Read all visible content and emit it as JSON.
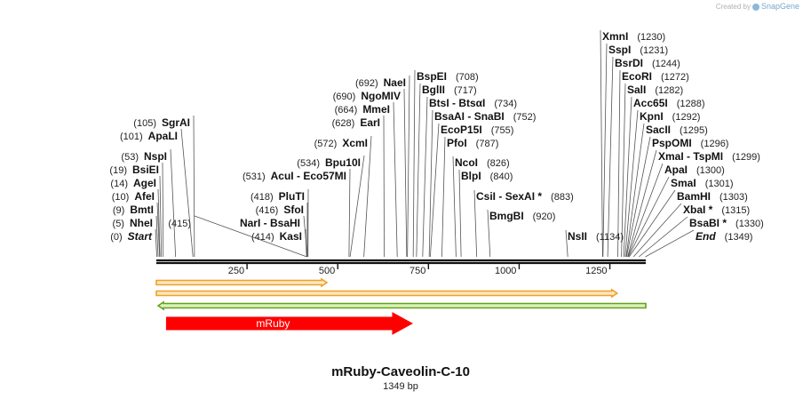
{
  "credit": {
    "prefix": "Created by",
    "brand": "SnapGene"
  },
  "colors": {
    "backbone": "#111111",
    "label_line": "#555555",
    "feature_orange": "#f0a028",
    "feature_orange_fill": "#fbe7c0",
    "feature_green": "#68a020",
    "feature_green_fill": "#d9f3b8",
    "mruby_fill": "#ff0000",
    "mruby_text": "#ffffff"
  },
  "map": {
    "title": "mRuby-Caveolin-C-10",
    "length_label": "1349 bp",
    "length": 1349,
    "ticks": [
      {
        "label": "250",
        "value": 250
      },
      {
        "label": "500",
        "value": 500
      },
      {
        "label": "750",
        "value": 750
      },
      {
        "label": "1000",
        "value": 1000
      },
      {
        "label": "1250",
        "value": 1250
      }
    ],
    "features": [
      {
        "name": "orf-1",
        "start": 0,
        "end": 470,
        "direction": "forward",
        "style": "orange",
        "label": ""
      },
      {
        "name": "orf-2",
        "start": 0,
        "end": 1270,
        "direction": "forward",
        "style": "orange",
        "label": ""
      },
      {
        "name": "orf-3",
        "start": 5,
        "end": 1349,
        "direction": "reverse",
        "style": "green",
        "label": ""
      },
      {
        "name": "mruby",
        "start": 28,
        "end": 705,
        "direction": "forward",
        "style": "red",
        "label": "mRuby"
      }
    ]
  },
  "left_labels": [
    {
      "segments": [
        {
          "text": "(105)",
          "kind": "pos"
        },
        {
          "text": "SgrAI",
          "kind": "enz"
        }
      ],
      "site": 105
    },
    {
      "segments": [
        {
          "text": "(101)",
          "kind": "pos"
        },
        {
          "text": "ApaLI",
          "kind": "enz"
        }
      ],
      "site": 101
    },
    {
      "segments": [
        {
          "text": "(53)",
          "kind": "pos"
        },
        {
          "text": "NspI",
          "kind": "enz"
        }
      ],
      "site": 53
    },
    {
      "segments": [
        {
          "text": "(19)",
          "kind": "pos"
        },
        {
          "text": "BsiEI",
          "kind": "enz"
        }
      ],
      "site": 19
    },
    {
      "segments": [
        {
          "text": "(14)",
          "kind": "pos"
        },
        {
          "text": "AgeI",
          "kind": "enz"
        }
      ],
      "site": 14
    },
    {
      "segments": [
        {
          "text": "(10)",
          "kind": "pos"
        },
        {
          "text": "AfeI",
          "kind": "enz"
        }
      ],
      "site": 10
    },
    {
      "segments": [
        {
          "text": "(9)",
          "kind": "pos"
        },
        {
          "text": "BmtI",
          "kind": "enz"
        }
      ],
      "site": 9
    },
    {
      "segments": [
        {
          "text": "(5)",
          "kind": "pos"
        },
        {
          "text": "NheI",
          "kind": "enz"
        }
      ],
      "site": 5
    },
    {
      "segments": [
        {
          "text": "(0)",
          "kind": "pos"
        },
        {
          "text": "Start",
          "kind": "enz-italic"
        }
      ],
      "site": 0
    },
    {
      "segments": [
        {
          "text": "(415)",
          "kind": "pos"
        }
      ],
      "site": 415
    },
    {
      "segments": [
        {
          "text": "(418)",
          "kind": "pos"
        },
        {
          "text": "PluTI",
          "kind": "enz"
        }
      ],
      "site": 418
    },
    {
      "segments": [
        {
          "text": "(416)",
          "kind": "pos"
        },
        {
          "text": "SfoI",
          "kind": "enz"
        }
      ],
      "site": 416
    },
    {
      "segments": [
        {
          "text": "NarI",
          "kind": "enz"
        },
        {
          "text": " - ",
          "kind": "sep"
        },
        {
          "text": "BsaHI",
          "kind": "enz"
        }
      ],
      "site": 416
    },
    {
      "segments": [
        {
          "text": "(414)",
          "kind": "pos"
        },
        {
          "text": "KasI",
          "kind": "enz"
        }
      ],
      "site": 414
    },
    {
      "segments": [
        {
          "text": "(534)",
          "kind": "pos"
        },
        {
          "text": "Bpu10I",
          "kind": "enz"
        }
      ],
      "site": 534
    },
    {
      "segments": [
        {
          "text": "(531)",
          "kind": "pos"
        },
        {
          "text": "AcuI",
          "kind": "enz"
        },
        {
          "text": " - ",
          "kind": "sep"
        },
        {
          "text": "Eco57MI",
          "kind": "enz"
        }
      ],
      "site": 531
    },
    {
      "segments": [
        {
          "text": "(572)",
          "kind": "pos"
        },
        {
          "text": "XcmI",
          "kind": "enz"
        }
      ],
      "site": 572
    },
    {
      "segments": [
        {
          "text": "(692)",
          "kind": "pos"
        },
        {
          "text": "NaeI",
          "kind": "enz"
        }
      ],
      "site": 692
    },
    {
      "segments": [
        {
          "text": "(690)",
          "kind": "pos"
        },
        {
          "text": "NgoMIV",
          "kind": "enz"
        }
      ],
      "site": 690
    },
    {
      "segments": [
        {
          "text": "(664)",
          "kind": "pos"
        },
        {
          "text": "MmeI",
          "kind": "enz"
        }
      ],
      "site": 664
    },
    {
      "segments": [
        {
          "text": "(628)",
          "kind": "pos"
        },
        {
          "text": "EarI",
          "kind": "enz"
        }
      ],
      "site": 628
    }
  ],
  "right_labels": [
    {
      "segments": [
        {
          "text": "BspEI",
          "kind": "enz"
        },
        {
          "text": "(708)",
          "kind": "pos"
        }
      ],
      "site": 708
    },
    {
      "segments": [
        {
          "text": "BglII",
          "kind": "enz"
        },
        {
          "text": "(717)",
          "kind": "pos"
        }
      ],
      "site": 717
    },
    {
      "segments": [
        {
          "text": "BtsI",
          "kind": "enz"
        },
        {
          "text": " - ",
          "kind": "sep"
        },
        {
          "text": "BtsαI",
          "kind": "enz"
        },
        {
          "text": "(734)",
          "kind": "pos"
        }
      ],
      "site": 734
    },
    {
      "segments": [
        {
          "text": "BsaAI",
          "kind": "enz"
        },
        {
          "text": " - ",
          "kind": "sep"
        },
        {
          "text": "SnaBI",
          "kind": "enz"
        },
        {
          "text": "(752)",
          "kind": "pos"
        }
      ],
      "site": 752
    },
    {
      "segments": [
        {
          "text": "EcoP15I",
          "kind": "enz"
        },
        {
          "text": "(755)",
          "kind": "pos"
        }
      ],
      "site": 755
    },
    {
      "segments": [
        {
          "text": "PfoI",
          "kind": "enz"
        },
        {
          "text": "(787)",
          "kind": "pos"
        }
      ],
      "site": 787
    },
    {
      "segments": [
        {
          "text": "NcoI",
          "kind": "enz"
        },
        {
          "text": "(826)",
          "kind": "pos"
        }
      ],
      "site": 826
    },
    {
      "segments": [
        {
          "text": "BlpI",
          "kind": "enz"
        },
        {
          "text": "(840)",
          "kind": "pos"
        }
      ],
      "site": 840
    },
    {
      "segments": [
        {
          "text": "CsiI",
          "kind": "enz"
        },
        {
          "text": " - ",
          "kind": "sep"
        },
        {
          "text": "SexAI *",
          "kind": "enz"
        },
        {
          "text": "(883)",
          "kind": "pos"
        }
      ],
      "site": 883
    },
    {
      "segments": [
        {
          "text": "BmgBI",
          "kind": "enz"
        },
        {
          "text": "(920)",
          "kind": "pos"
        }
      ],
      "site": 920
    },
    {
      "segments": [
        {
          "text": "NsII",
          "kind": "enz"
        },
        {
          "text": "(1134)",
          "kind": "pos"
        }
      ],
      "site": 1134
    },
    {
      "segments": [
        {
          "text": "XmnI",
          "kind": "enz"
        },
        {
          "text": "(1230)",
          "kind": "pos"
        }
      ],
      "site": 1230
    },
    {
      "segments": [
        {
          "text": "SspI",
          "kind": "enz"
        },
        {
          "text": "(1231)",
          "kind": "pos"
        }
      ],
      "site": 1231
    },
    {
      "segments": [
        {
          "text": "BsrDI",
          "kind": "enz"
        },
        {
          "text": "(1244)",
          "kind": "pos"
        }
      ],
      "site": 1244
    },
    {
      "segments": [
        {
          "text": "EcoRI",
          "kind": "enz"
        },
        {
          "text": "(1272)",
          "kind": "pos"
        }
      ],
      "site": 1272
    },
    {
      "segments": [
        {
          "text": "SalI",
          "kind": "enz"
        },
        {
          "text": "(1282)",
          "kind": "pos"
        }
      ],
      "site": 1282
    },
    {
      "segments": [
        {
          "text": "Acc65I",
          "kind": "enz"
        },
        {
          "text": "(1288)",
          "kind": "pos"
        }
      ],
      "site": 1288
    },
    {
      "segments": [
        {
          "text": "KpnI",
          "kind": "enz"
        },
        {
          "text": "(1292)",
          "kind": "pos"
        }
      ],
      "site": 1292
    },
    {
      "segments": [
        {
          "text": "SacII",
          "kind": "enz"
        },
        {
          "text": "(1295)",
          "kind": "pos"
        }
      ],
      "site": 1295
    },
    {
      "segments": [
        {
          "text": "PspOMI",
          "kind": "enz"
        },
        {
          "text": "(1296)",
          "kind": "pos"
        }
      ],
      "site": 1296
    },
    {
      "segments": [
        {
          "text": "XmaI",
          "kind": "enz"
        },
        {
          "text": " - ",
          "kind": "sep"
        },
        {
          "text": "TspMI",
          "kind": "enz"
        },
        {
          "text": "(1299)",
          "kind": "pos"
        }
      ],
      "site": 1299
    },
    {
      "segments": [
        {
          "text": "ApaI",
          "kind": "enz"
        },
        {
          "text": "(1300)",
          "kind": "pos"
        }
      ],
      "site": 1300
    },
    {
      "segments": [
        {
          "text": "SmaI",
          "kind": "enz"
        },
        {
          "text": "(1301)",
          "kind": "pos"
        }
      ],
      "site": 1301
    },
    {
      "segments": [
        {
          "text": "BamHI",
          "kind": "enz"
        },
        {
          "text": "(1303)",
          "kind": "pos"
        }
      ],
      "site": 1303
    },
    {
      "segments": [
        {
          "text": "XbaI *",
          "kind": "enz"
        },
        {
          "text": "(1315)",
          "kind": "pos"
        }
      ],
      "site": 1315
    },
    {
      "segments": [
        {
          "text": "BsaBI *",
          "kind": "enz"
        },
        {
          "text": "(1330)",
          "kind": "pos"
        }
      ],
      "site": 1330
    },
    {
      "segments": [
        {
          "text": "End",
          "kind": "enz-italic"
        },
        {
          "text": "(1349)",
          "kind": "pos"
        }
      ],
      "site": 1349
    }
  ]
}
